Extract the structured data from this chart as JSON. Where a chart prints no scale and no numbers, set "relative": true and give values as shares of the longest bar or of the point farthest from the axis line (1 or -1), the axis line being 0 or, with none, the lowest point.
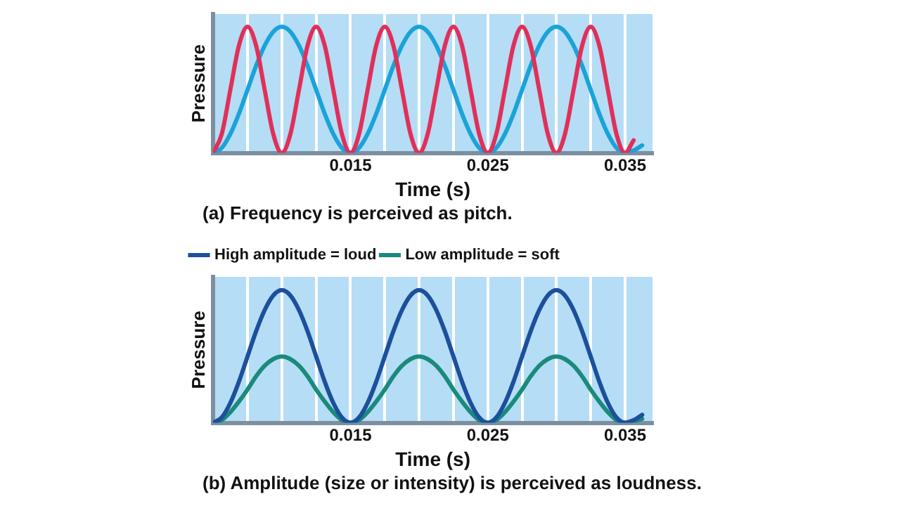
{
  "chart_data": [
    {
      "type": "line",
      "xlabel": "Time (s)",
      "ylabel": "Pressure",
      "annotations": [
        "(a) Frequency is perceived as pitch."
      ],
      "relative": true,
      "grid": "x",
      "xlim": [
        0.005,
        0.037
      ],
      "xticks": [
        {
          "value": 0.0075,
          "label": null
        },
        {
          "value": 0.01,
          "label": null
        },
        {
          "value": 0.0125,
          "label": null
        },
        0.015,
        {
          "value": 0.0175,
          "label": null
        },
        {
          "value": 0.02,
          "label": null
        },
        {
          "value": 0.0225,
          "label": null
        },
        0.025,
        {
          "value": 0.0275,
          "label": null
        },
        {
          "value": 0.03,
          "label": null
        },
        {
          "value": 0.0325,
          "label": null
        },
        0.035
      ],
      "x": [
        0.005,
        0.005625,
        0.00625,
        0.006875,
        0.0075,
        0.008125,
        0.00875,
        0.009375,
        0.01,
        0.010625,
        0.01125,
        0.011875,
        0.0125,
        0.013125,
        0.01375,
        0.014375,
        0.015,
        0.015625,
        0.01625,
        0.016875,
        0.0175,
        0.018125,
        0.01875,
        0.019375,
        0.02,
        0.020625,
        0.02125,
        0.021875,
        0.0225,
        0.023125,
        0.02375,
        0.024375,
        0.025,
        0.025625,
        0.02625,
        0.026875,
        0.0275,
        0.028125,
        0.02875,
        0.029375,
        0.03,
        0.030625,
        0.03125,
        0.031875,
        0.0325,
        0.033125,
        0.03375,
        0.034375,
        0.035,
        0.035625,
        0.03625
      ],
      "series": [
        {
          "color": "#e0305a",
          "x": [
            0.005,
            0.005625,
            0.00625,
            0.006875,
            0.0075,
            0.008125,
            0.00875,
            0.009375,
            0.01,
            0.010625,
            0.01125,
            0.011875,
            0.0125,
            0.013125,
            0.01375,
            0.014375,
            0.015,
            0.015625,
            0.01625,
            0.016875,
            0.0175,
            0.018125,
            0.01875,
            0.019375,
            0.02,
            0.020625,
            0.02125,
            0.021875,
            0.0225,
            0.023125,
            0.02375,
            0.024375,
            0.025,
            0.025625,
            0.02625,
            0.026875,
            0.0275,
            0.028125,
            0.02875,
            0.029375,
            0.03,
            0.030625,
            0.03125,
            0.031875,
            0.0325,
            0.033125,
            0.03375,
            0.034375,
            0.035,
            0.035625
          ],
          "values": [
            0,
            0.15,
            0.5,
            0.85,
            1,
            0.85,
            0.5,
            0.15,
            0,
            0.15,
            0.5,
            0.85,
            1,
            0.85,
            0.5,
            0.15,
            0,
            0.15,
            0.5,
            0.85,
            1,
            0.85,
            0.5,
            0.15,
            0,
            0.15,
            0.5,
            0.85,
            1,
            0.85,
            0.5,
            0.15,
            0,
            0.15,
            0.5,
            0.85,
            1,
            0.85,
            0.5,
            0.15,
            0,
            0.15,
            0.5,
            0.85,
            1,
            0.85,
            0.5,
            0.15,
            0,
            0.1
          ]
        },
        {
          "color": "#1aa3d9",
          "values": [
            0,
            0.04,
            0.15,
            0.31,
            0.5,
            0.69,
            0.85,
            0.96,
            1,
            0.96,
            0.85,
            0.69,
            0.5,
            0.31,
            0.15,
            0.04,
            0,
            0.04,
            0.15,
            0.31,
            0.5,
            0.69,
            0.85,
            0.96,
            1,
            0.96,
            0.85,
            0.69,
            0.5,
            0.31,
            0.15,
            0.04,
            0,
            0.04,
            0.15,
            0.31,
            0.5,
            0.69,
            0.85,
            0.96,
            1,
            0.96,
            0.85,
            0.69,
            0.5,
            0.31,
            0.15,
            0.04,
            0,
            0.02,
            0.06
          ]
        }
      ]
    },
    {
      "type": "line",
      "xlabel": "Time (s)",
      "ylabel": "Pressure",
      "annotations": [
        "(b) Amplitude (size or intensity) is perceived as loudness."
      ],
      "relative": true,
      "grid": "x",
      "legend": "top left",
      "xlim": [
        0.005,
        0.037
      ],
      "xticks": [
        {
          "value": 0.0075,
          "label": null
        },
        {
          "value": 0.01,
          "label": null
        },
        {
          "value": 0.0125,
          "label": null
        },
        0.015,
        {
          "value": 0.0175,
          "label": null
        },
        {
          "value": 0.02,
          "label": null
        },
        {
          "value": 0.0225,
          "label": null
        },
        0.025,
        {
          "value": 0.0275,
          "label": null
        },
        {
          "value": 0.03,
          "label": null
        },
        {
          "value": 0.0325,
          "label": null
        },
        0.035
      ],
      "x": [
        0.005,
        0.005625,
        0.00625,
        0.006875,
        0.0075,
        0.008125,
        0.00875,
        0.009375,
        0.01,
        0.010625,
        0.01125,
        0.011875,
        0.0125,
        0.013125,
        0.01375,
        0.014375,
        0.015,
        0.015625,
        0.01625,
        0.016875,
        0.0175,
        0.018125,
        0.01875,
        0.019375,
        0.02,
        0.020625,
        0.02125,
        0.021875,
        0.0225,
        0.023125,
        0.02375,
        0.024375,
        0.025,
        0.025625,
        0.02625,
        0.026875,
        0.0275,
        0.028125,
        0.02875,
        0.029375,
        0.03,
        0.030625,
        0.03125,
        0.031875,
        0.0325,
        0.033125,
        0.03375,
        0.034375,
        0.035,
        0.035625,
        0.03625
      ],
      "series": [
        {
          "name": "High amplitude = loud",
          "color": "#1c4f9c",
          "values": [
            0,
            0.04,
            0.15,
            0.31,
            0.5,
            0.69,
            0.85,
            0.96,
            1,
            0.96,
            0.85,
            0.69,
            0.5,
            0.31,
            0.15,
            0.04,
            0,
            0.04,
            0.15,
            0.31,
            0.5,
            0.69,
            0.85,
            0.96,
            1,
            0.96,
            0.85,
            0.69,
            0.5,
            0.31,
            0.15,
            0.04,
            0,
            0.04,
            0.15,
            0.31,
            0.5,
            0.69,
            0.85,
            0.96,
            1,
            0.96,
            0.85,
            0.69,
            0.5,
            0.31,
            0.15,
            0.04,
            0,
            0.02,
            0.06
          ]
        },
        {
          "name": "Low amplitude = soft",
          "color": "#1a8a7c",
          "values": [
            0,
            0.02,
            0.08,
            0.16,
            0.25,
            0.35,
            0.43,
            0.48,
            0.5,
            0.48,
            0.43,
            0.35,
            0.25,
            0.16,
            0.08,
            0.02,
            0,
            0.02,
            0.08,
            0.16,
            0.25,
            0.35,
            0.43,
            0.48,
            0.5,
            0.48,
            0.43,
            0.35,
            0.25,
            0.16,
            0.08,
            0.02,
            0,
            0.02,
            0.08,
            0.16,
            0.25,
            0.35,
            0.43,
            0.48,
            0.5,
            0.48,
            0.43,
            0.35,
            0.25,
            0.16,
            0.08,
            0.02,
            0,
            0.01,
            0.03
          ]
        }
      ]
    }
  ]
}
